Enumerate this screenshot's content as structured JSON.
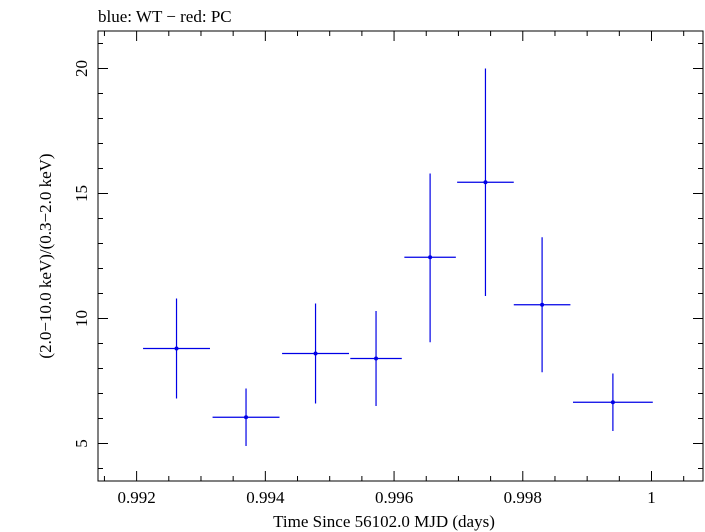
{
  "chart_data": {
    "type": "scatter",
    "title": "blue: WT − red: PC",
    "xlabel": "Time Since 56102.0 MJD (days)",
    "ylabel": "(2.0−10.0 keV)/(0.3−2.0 keV)",
    "xlim": [
      0.9914,
      1.0008
    ],
    "ylim": [
      3.5,
      21.5
    ],
    "x_ticks": [
      0.992,
      0.994,
      0.996,
      0.998,
      1.0
    ],
    "x_tick_labels": [
      "0.992",
      "0.994",
      "0.996",
      "0.998",
      "1"
    ],
    "y_ticks": [
      5,
      10,
      15,
      20
    ],
    "y_tick_labels": [
      "5",
      "10",
      "15",
      "20"
    ],
    "grid": false,
    "series": [
      {
        "color": "#0000e6",
        "points": [
          {
            "x": 0.99262,
            "y": 8.8,
            "xerr": 0.00052,
            "yerr_lo": 2.0,
            "yerr_hi": 2.0
          },
          {
            "x": 0.9937,
            "y": 6.05,
            "xerr": 0.00052,
            "yerr_lo": 1.15,
            "yerr_hi": 1.15
          },
          {
            "x": 0.99478,
            "y": 8.6,
            "xerr": 0.00052,
            "yerr_lo": 2.0,
            "yerr_hi": 2.0
          },
          {
            "x": 0.99572,
            "y": 8.4,
            "xerr": 0.0004,
            "yerr_lo": 1.9,
            "yerr_hi": 1.9
          },
          {
            "x": 0.99656,
            "y": 12.45,
            "xerr": 0.0004,
            "yerr_lo": 3.4,
            "yerr_hi": 3.35
          },
          {
            "x": 0.99742,
            "y": 15.45,
            "xerr": 0.00044,
            "yerr_lo": 4.55,
            "yerr_hi": 4.55
          },
          {
            "x": 0.9983,
            "y": 10.55,
            "xerr": 0.00044,
            "yerr_lo": 2.7,
            "yerr_hi": 2.7
          },
          {
            "x": 0.9994,
            "y": 6.65,
            "xerr": 0.00062,
            "yerr_lo": 1.15,
            "yerr_hi": 1.15
          }
        ]
      }
    ]
  }
}
